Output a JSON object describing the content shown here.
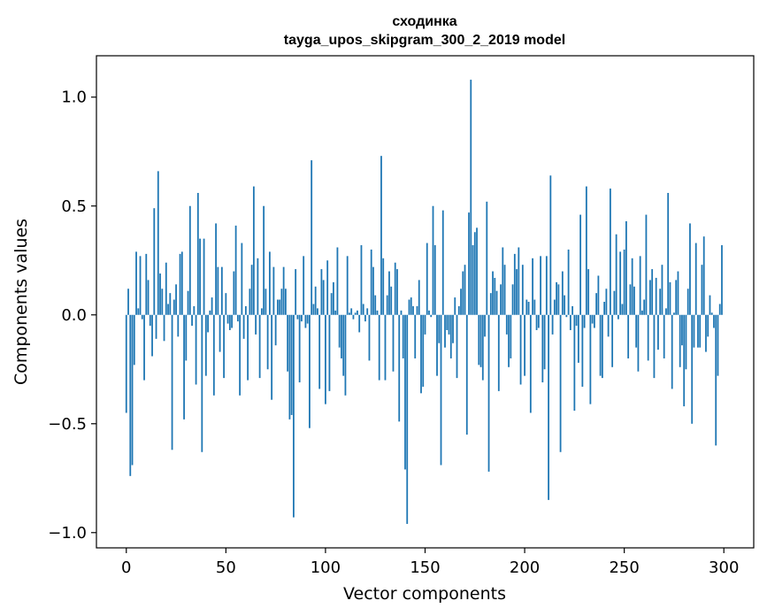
{
  "chart_data": {
    "type": "bar",
    "title": "сходинка",
    "subtitle": "tayga_upos_skipgram_300_2_2019 model",
    "xlabel": "Vector components",
    "ylabel": "Components values",
    "xlim": [
      -15,
      315
    ],
    "ylim": [
      -1.07,
      1.19
    ],
    "xticks": [
      0,
      50,
      100,
      150,
      200,
      250,
      300
    ],
    "yticks": [
      -1.0,
      -0.5,
      0.0,
      0.5,
      1.0
    ],
    "xtick_labels": [
      "0",
      "50",
      "100",
      "150",
      "200",
      "250",
      "300"
    ],
    "ytick_labels": [
      "−1.0",
      "−0.5",
      "0.0",
      "0.5",
      "1.0"
    ],
    "bar_color": "#1f77b4",
    "grid": false,
    "x": [
      0,
      1,
      2,
      3,
      4,
      5,
      6,
      7,
      8,
      9,
      10,
      11,
      12,
      13,
      14,
      15,
      16,
      17,
      18,
      19,
      20,
      21,
      22,
      23,
      24,
      25,
      26,
      27,
      28,
      29,
      30,
      31,
      32,
      33,
      34,
      35,
      36,
      37,
      38,
      39,
      40,
      41,
      42,
      43,
      44,
      45,
      46,
      47,
      48,
      49,
      50,
      51,
      52,
      53,
      54,
      55,
      56,
      57,
      58,
      59,
      60,
      61,
      62,
      63,
      64,
      65,
      66,
      67,
      68,
      69,
      70,
      71,
      72,
      73,
      74,
      75,
      76,
      77,
      78,
      79,
      80,
      81,
      82,
      83,
      84,
      85,
      86,
      87,
      88,
      89,
      90,
      91,
      92,
      93,
      94,
      95,
      96,
      97,
      98,
      99,
      100,
      101,
      102,
      103,
      104,
      105,
      106,
      107,
      108,
      109,
      110,
      111,
      112,
      113,
      114,
      115,
      116,
      117,
      118,
      119,
      120,
      121,
      122,
      123,
      124,
      125,
      126,
      127,
      128,
      129,
      130,
      131,
      132,
      133,
      134,
      135,
      136,
      137,
      138,
      139,
      140,
      141,
      142,
      143,
      144,
      145,
      146,
      147,
      148,
      149,
      150,
      151,
      152,
      153,
      154,
      155,
      156,
      157,
      158,
      159,
      160,
      161,
      162,
      163,
      164,
      165,
      166,
      167,
      168,
      169,
      170,
      171,
      172,
      173,
      174,
      175,
      176,
      177,
      178,
      179,
      180,
      181,
      182,
      183,
      184,
      185,
      186,
      187,
      188,
      189,
      190,
      191,
      192,
      193,
      194,
      195,
      196,
      197,
      198,
      199,
      200,
      201,
      202,
      203,
      204,
      205,
      206,
      207,
      208,
      209,
      210,
      211,
      212,
      213,
      214,
      215,
      216,
      217,
      218,
      219,
      220,
      221,
      222,
      223,
      224,
      225,
      226,
      227,
      228,
      229,
      230,
      231,
      232,
      233,
      234,
      235,
      236,
      237,
      238,
      239,
      240,
      241,
      242,
      243,
      244,
      245,
      246,
      247,
      248,
      249,
      250,
      251,
      252,
      253,
      254,
      255,
      256,
      257,
      258,
      259,
      260,
      261,
      262,
      263,
      264,
      265,
      266,
      267,
      268,
      269,
      270,
      271,
      272,
      273,
      274,
      275,
      276,
      277,
      278,
      279,
      280,
      281,
      282,
      283,
      284,
      285,
      286,
      287,
      288,
      289,
      290,
      291,
      292,
      293,
      294,
      295,
      296,
      297,
      298,
      299
    ],
    "values": [
      -0.45,
      0.12,
      -0.74,
      -0.69,
      -0.23,
      0.29,
      0.03,
      0.27,
      -0.02,
      -0.3,
      0.28,
      0.16,
      -0.05,
      -0.19,
      0.49,
      -0.11,
      0.66,
      0.19,
      0.12,
      -0.12,
      0.24,
      0.05,
      0.1,
      -0.62,
      0.07,
      0.14,
      -0.1,
      0.28,
      0.29,
      -0.48,
      -0.21,
      0.11,
      0.5,
      -0.05,
      0.04,
      -0.32,
      0.56,
      0.35,
      -0.63,
      0.35,
      -0.28,
      -0.08,
      0.02,
      0.08,
      -0.37,
      0.42,
      0.22,
      -0.17,
      0.22,
      -0.29,
      0.1,
      -0.04,
      -0.07,
      -0.06,
      0.2,
      0.41,
      -0.03,
      -0.37,
      0.33,
      -0.11,
      0.04,
      -0.3,
      0.12,
      0.23,
      0.59,
      -0.09,
      0.26,
      -0.29,
      0.03,
      0.5,
      0.12,
      -0.25,
      0.29,
      -0.39,
      0.22,
      -0.14,
      0.07,
      0.07,
      0.12,
      0.22,
      0.12,
      -0.26,
      -0.48,
      -0.46,
      -0.93,
      0.21,
      -0.02,
      -0.31,
      -0.03,
      0.27,
      -0.06,
      -0.04,
      -0.52,
      0.71,
      0.05,
      0.13,
      0.03,
      -0.34,
      0.21,
      0.16,
      -0.41,
      0.25,
      -0.35,
      0.1,
      0.15,
      0.02,
      0.31,
      -0.15,
      -0.2,
      -0.28,
      -0.37,
      0.27,
      0.01,
      0.03,
      -0.02,
      0.01,
      0.02,
      -0.08,
      0.32,
      0.05,
      -0.03,
      0.03,
      -0.21,
      0.3,
      0.22,
      0.09,
      0.02,
      -0.3,
      0.73,
      0.26,
      -0.3,
      0.09,
      0.2,
      0.13,
      -0.26,
      0.24,
      0.21,
      -0.49,
      0.02,
      -0.2,
      -0.71,
      -0.96,
      0.07,
      0.08,
      0.04,
      -0.2,
      0.04,
      0.16,
      -0.36,
      -0.33,
      -0.09,
      0.33,
      0.02,
      -0.01,
      0.5,
      0.32,
      -0.28,
      -0.13,
      -0.69,
      0.48,
      -0.15,
      -0.07,
      -0.09,
      -0.2,
      -0.13,
      0.08,
      -0.29,
      0.04,
      0.12,
      0.2,
      0.23,
      -0.55,
      0.47,
      1.08,
      0.32,
      0.38,
      0.4,
      -0.23,
      -0.24,
      -0.3,
      -0.1,
      0.52,
      -0.72,
      0.1,
      0.2,
      0.17,
      0.11,
      -0.35,
      0.14,
      0.31,
      0.23,
      -0.09,
      -0.24,
      -0.2,
      0.14,
      0.28,
      0.21,
      0.31,
      -0.32,
      0.23,
      -0.28,
      0.07,
      0.06,
      -0.45,
      0.26,
      0.07,
      -0.07,
      -0.06,
      0.27,
      -0.31,
      -0.25,
      0.27,
      -0.85,
      0.64,
      -0.09,
      0.07,
      0.15,
      0.14,
      -0.63,
      0.2,
      0.09,
      -0.01,
      0.3,
      -0.07,
      0.04,
      -0.44,
      -0.05,
      -0.22,
      0.46,
      -0.33,
      -0.06,
      0.59,
      0.21,
      -0.41,
      -0.04,
      -0.06,
      0.1,
      0.18,
      -0.28,
      -0.29,
      0.06,
      0.12,
      -0.1,
      0.58,
      -0.24,
      0.11,
      0.37,
      -0.02,
      0.29,
      0.05,
      0.3,
      0.43,
      -0.2,
      0.14,
      0.26,
      0.13,
      -0.15,
      -0.26,
      0.27,
      0.02,
      0.07,
      0.46,
      -0.21,
      0.16,
      0.21,
      -0.29,
      0.17,
      -0.16,
      0.12,
      0.23,
      -0.2,
      0.03,
      0.56,
      0.15,
      -0.34,
      0.01,
      0.16,
      0.2,
      -0.24,
      -0.14,
      -0.42,
      -0.25,
      0.12,
      0.42,
      -0.5,
      -0.15,
      0.33,
      -0.15,
      -0.15,
      0.23,
      0.36,
      -0.17,
      -0.1,
      0.09,
      0.01,
      -0.06,
      -0.6,
      -0.28,
      0.05,
      0.32
    ]
  }
}
